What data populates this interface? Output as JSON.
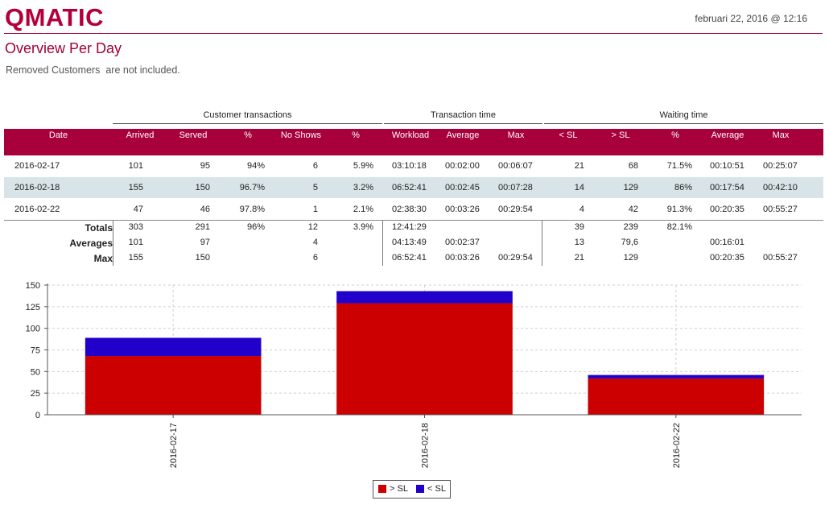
{
  "header": {
    "logo": "QMATIC",
    "date": "februari 22, 2016 @ 12:16"
  },
  "page": {
    "title": "Overview Per Day",
    "subtitle": "Removed Customers  are not included."
  },
  "colors": {
    "brand": "#a8003a",
    "over_sl": "#cc0000",
    "under_sl": "#2200cc",
    "alt_row": "#d8e4e8"
  },
  "groups": [
    "Customer transactions",
    "Transaction time",
    "Waiting time"
  ],
  "columns": [
    "Date",
    "Arrived",
    "Served",
    "%",
    "No Shows",
    "%",
    "Workload",
    "Average",
    "Max",
    "< SL",
    "> SL",
    "%",
    "Average",
    "Max"
  ],
  "rows": [
    [
      "2016-02-17",
      "101",
      "95",
      "94%",
      "6",
      "5.9%",
      "03:10:18",
      "00:02:00",
      "00:06:07",
      "21",
      "68",
      "71.5%",
      "00:10:51",
      "00:25:07"
    ],
    [
      "2016-02-18",
      "155",
      "150",
      "96.7%",
      "5",
      "3.2%",
      "06:52:41",
      "00:02:45",
      "00:07:28",
      "14",
      "129",
      "86%",
      "00:17:54",
      "00:42:10"
    ],
    [
      "2016-02-22",
      "47",
      "46",
      "97.8%",
      "1",
      "2.1%",
      "02:38:30",
      "00:03:26",
      "00:29:54",
      "4",
      "42",
      "91.3%",
      "00:20:35",
      "00:55:27"
    ]
  ],
  "summary": [
    [
      "Totals",
      "303",
      "291",
      "96%",
      "12",
      "3.9%",
      "12:41:29",
      "",
      "",
      "39",
      "239",
      "82.1%",
      "",
      ""
    ],
    [
      "Averages",
      "101",
      "97",
      "",
      "4",
      "",
      "04:13:49",
      "00:02:37",
      "",
      "13",
      "79,6",
      "",
      "00:16:01",
      ""
    ],
    [
      "Max",
      "155",
      "150",
      "",
      "6",
      "",
      "06:52:41",
      "00:03:26",
      "00:29:54",
      "21",
      "129",
      "",
      "00:20:35",
      "00:55:27"
    ]
  ],
  "chart_data": {
    "type": "bar",
    "stacked": true,
    "categories": [
      "2016-02-17",
      "2016-02-18",
      "2016-02-22"
    ],
    "series": [
      {
        "name": "> SL",
        "values": [
          68,
          129,
          42
        ],
        "color": "#cc0000"
      },
      {
        "name": "< SL",
        "values": [
          21,
          14,
          4
        ],
        "color": "#2200cc"
      }
    ],
    "y_ticks": [
      "0",
      "25",
      "50",
      "75",
      "100",
      "125",
      "150"
    ],
    "ylim": [
      0,
      150
    ],
    "grid": true,
    "legend_position": "bottom-center"
  }
}
